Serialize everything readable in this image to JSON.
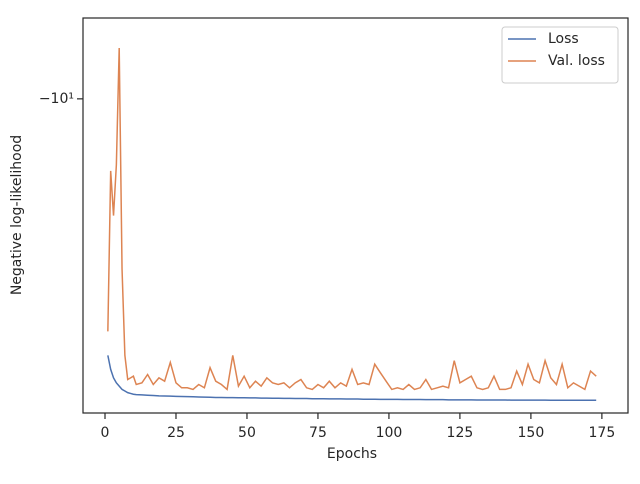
{
  "chart_data": {
    "type": "line",
    "xlabel": "Epochs",
    "ylabel": "Negative log-likelihood",
    "x": [
      1,
      2,
      3,
      4,
      5,
      6,
      7,
      8,
      9,
      10,
      11,
      13,
      15,
      17,
      19,
      21,
      23,
      25,
      27,
      29,
      31,
      33,
      35,
      37,
      39,
      41,
      43,
      45,
      47,
      49,
      51,
      53,
      55,
      57,
      59,
      61,
      63,
      65,
      67,
      69,
      71,
      73,
      75,
      77,
      79,
      81,
      83,
      85,
      87,
      89,
      91,
      93,
      95,
      97,
      99,
      101,
      103,
      105,
      107,
      109,
      111,
      113,
      115,
      117,
      119,
      121,
      123,
      125,
      127,
      129,
      131,
      133,
      135,
      137,
      139,
      141,
      143,
      145,
      147,
      149,
      151,
      153,
      155,
      157,
      159,
      161,
      163,
      165,
      167,
      169,
      171,
      173
    ],
    "series": [
      {
        "name": "Loss",
        "color": "#4c72b0",
        "values": [
          -20.3,
          -21.1,
          -21.6,
          -21.9,
          -22.1,
          -22.3,
          -22.4,
          -22.5,
          -22.55,
          -22.6,
          -22.62,
          -22.64,
          -22.66,
          -22.68,
          -22.7,
          -22.71,
          -22.72,
          -22.73,
          -22.74,
          -22.75,
          -22.76,
          -22.77,
          -22.78,
          -22.79,
          -22.8,
          -22.8,
          -22.81,
          -22.81,
          -22.82,
          -22.82,
          -22.83,
          -22.83,
          -22.84,
          -22.84,
          -22.85,
          -22.85,
          -22.86,
          -22.86,
          -22.87,
          -22.87,
          -22.87,
          -22.88,
          -22.88,
          -22.88,
          -22.89,
          -22.89,
          -22.89,
          -22.9,
          -22.9,
          -22.9,
          -22.91,
          -22.91,
          -22.91,
          -22.92,
          -22.92,
          -22.92,
          -22.92,
          -22.93,
          -22.93,
          -22.93,
          -22.93,
          -22.94,
          -22.94,
          -22.94,
          -22.94,
          -22.95,
          -22.95,
          -22.95,
          -22.95,
          -22.95,
          -22.96,
          -22.96,
          -22.96,
          -22.96,
          -22.96,
          -22.96,
          -22.97,
          -22.97,
          -22.97,
          -22.97,
          -22.97,
          -22.97,
          -22.97,
          -22.98,
          -22.98,
          -22.98,
          -22.98,
          -22.98,
          -22.98,
          -22.98,
          -22.98,
          -22.98
        ]
      },
      {
        "name": "Val. loss",
        "color": "#dd8452",
        "values": [
          -19.0,
          -12.2,
          -13.8,
          -12.0,
          -8.69,
          -16.0,
          -20.3,
          -21.7,
          -21.6,
          -21.5,
          -22.0,
          -21.9,
          -21.4,
          -22.0,
          -21.6,
          -21.8,
          -20.7,
          -21.9,
          -22.2,
          -22.2,
          -22.3,
          -22.0,
          -22.2,
          -21.0,
          -21.8,
          -22.0,
          -22.3,
          -20.3,
          -22.1,
          -21.5,
          -22.2,
          -21.8,
          -22.1,
          -21.6,
          -21.9,
          -22.0,
          -21.9,
          -22.2,
          -21.9,
          -21.7,
          -22.2,
          -22.3,
          -22.0,
          -22.2,
          -21.8,
          -22.2,
          -21.9,
          -22.1,
          -21.1,
          -22.0,
          -21.9,
          -22.0,
          -20.8,
          -21.3,
          -21.8,
          -22.3,
          -22.2,
          -22.3,
          -22.0,
          -22.3,
          -22.2,
          -21.7,
          -22.3,
          -22.2,
          -22.1,
          -22.2,
          -20.6,
          -21.9,
          -21.7,
          -21.5,
          -22.2,
          -22.3,
          -22.2,
          -21.5,
          -22.3,
          -22.3,
          -22.2,
          -21.2,
          -22.0,
          -20.8,
          -21.7,
          -21.9,
          -20.6,
          -21.6,
          -22.0,
          -20.8,
          -22.2,
          -21.9,
          -22.1,
          -22.3,
          -21.2,
          -21.5
        ]
      }
    ],
    "xlim": [
      -7.75,
      184.2
    ],
    "xticks": [
      0,
      25,
      50,
      75,
      100,
      125,
      150,
      175
    ],
    "ylim": [
      -8,
      -23.8
    ],
    "yscale": "symlog",
    "yticks": [
      {
        "value": -10,
        "label": "−10¹"
      }
    ],
    "legend": "upper right"
  }
}
